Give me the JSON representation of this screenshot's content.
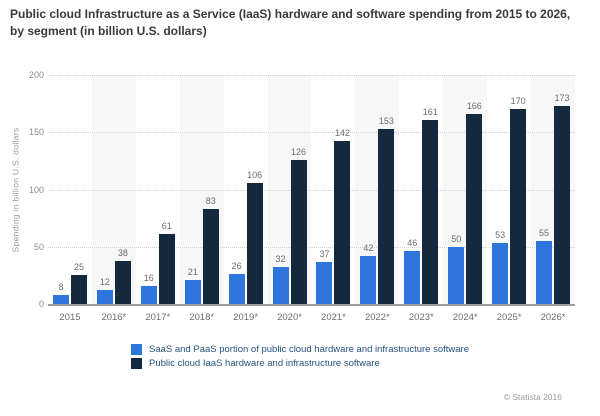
{
  "title": "Public cloud Infrastructure as a Service (IaaS) hardware and software spending from 2015 to 2026, by segment (in billion U.S. dollars)",
  "footer": {
    "attribution": "© Statista 2016"
  },
  "colors": {
    "saas_blue": "#2e76dd",
    "iaas_navy": "#14293e",
    "band_gray": "#f7f7f7"
  },
  "chart_data": {
    "type": "bar",
    "title": "Public cloud Infrastructure as a Service (IaaS) hardware and software spending from 2015 to 2026, by segment (in billion U.S. dollars)",
    "categories": [
      "2015",
      "2016*",
      "2017*",
      "2018*",
      "2019*",
      "2020*",
      "2021*",
      "2022*",
      "2023*",
      "2024*",
      "2025*",
      "2026*"
    ],
    "series": [
      {
        "name": "SaaS and PaaS portion of public cloud hardware and infrastructure software",
        "color": "#2e76dd",
        "values": [
          8,
          12,
          16,
          21,
          26,
          32,
          37,
          42,
          46,
          50,
          53,
          55
        ]
      },
      {
        "name": "Public cloud IaaS hardware and infrastructure software",
        "color": "#14293e",
        "values": [
          25,
          38,
          61,
          83,
          106,
          126,
          142,
          153,
          161,
          166,
          170,
          173
        ]
      }
    ],
    "xlabel": "",
    "ylabel": "Spending in billion U.S. dollars",
    "ylim": [
      0,
      200
    ],
    "yticks": [
      0,
      50,
      100,
      150,
      200
    ],
    "grid": true,
    "grid_style": "dotted",
    "legend_position": "bottom"
  }
}
